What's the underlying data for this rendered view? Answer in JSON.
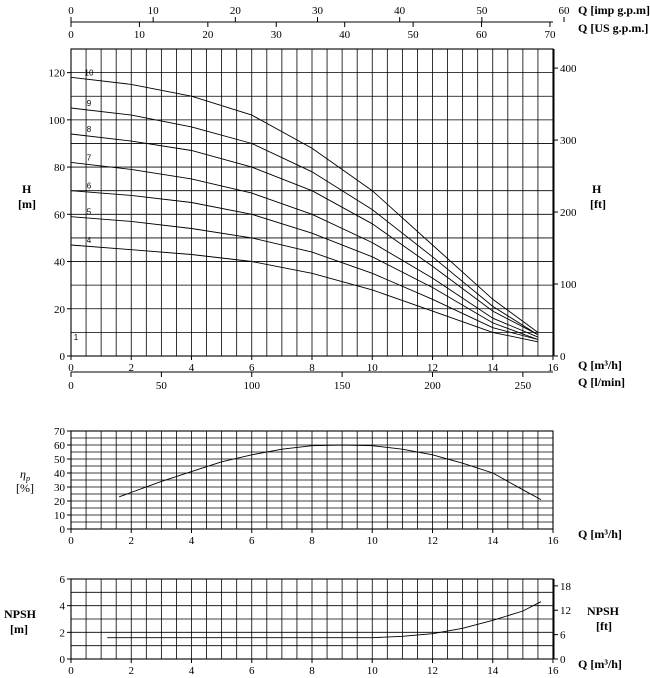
{
  "labels": {
    "q_imp": "Q [imp g.p.m]",
    "q_us": "Q [US g.p.m.]",
    "q_m3h": "Q [m³/h]",
    "q_lmin": "Q [l/min]",
    "h": "H",
    "h_m": "[m]",
    "h_ft": "[ft]",
    "eta_sym": "η",
    "eta_sub": "p",
    "eta_unit": "[%]",
    "npsh": "NPSH",
    "npsh_m": "[m]",
    "npsh_ft": "[ft]"
  },
  "chart_data": [
    {
      "type": "line",
      "x_label": "Q [m³/h]",
      "y_label": "H [m]",
      "xlim": [
        0,
        16
      ],
      "ylim": [
        0,
        130
      ],
      "x_ticks": [
        "0",
        "2",
        "4",
        "6",
        "8",
        "10",
        "12",
        "14",
        "16"
      ],
      "y_ticks": [
        "0",
        "20",
        "40",
        "60",
        "80",
        "100",
        "120"
      ],
      "y2_label": "H [ft]",
      "y2_ticks": [
        "0",
        "100",
        "200",
        "300",
        "400"
      ],
      "x_top_imp_ticks": [
        "0",
        "10",
        "20",
        "30",
        "40",
        "50",
        "60"
      ],
      "x_top_us_ticks": [
        "0",
        "10",
        "20",
        "30",
        "40",
        "50",
        "60",
        "70"
      ],
      "x_bottom_lmin_ticks": [
        "0",
        "50",
        "100",
        "150",
        "200",
        "250"
      ],
      "series": [
        {
          "name": "10",
          "x": [
            0,
            2,
            4,
            6,
            8,
            10,
            12,
            14,
            15.5
          ],
          "y": [
            118,
            115,
            110,
            102,
            88,
            70,
            47,
            24,
            10
          ]
        },
        {
          "name": "9",
          "x": [
            0,
            2,
            4,
            6,
            8,
            10,
            12,
            14,
            15.5
          ],
          "y": [
            105,
            102,
            97,
            90,
            78,
            62,
            42,
            21,
            9
          ]
        },
        {
          "name": "8",
          "x": [
            0,
            2,
            4,
            6,
            8,
            10,
            12,
            14,
            15.5
          ],
          "y": [
            94,
            91,
            87,
            80,
            70,
            56,
            38,
            19,
            9
          ]
        },
        {
          "name": "7",
          "x": [
            0,
            2,
            4,
            6,
            8,
            10,
            12,
            14,
            15.5
          ],
          "y": [
            82,
            79,
            75,
            69,
            60,
            48,
            33,
            16,
            8
          ]
        },
        {
          "name": "6",
          "x": [
            0,
            2,
            4,
            6,
            8,
            10,
            12,
            14,
            15.5
          ],
          "y": [
            70,
            68,
            65,
            60,
            52,
            42,
            29,
            14,
            7
          ]
        },
        {
          "name": "5",
          "x": [
            0,
            2,
            4,
            6,
            8,
            10,
            12,
            14,
            15.5
          ],
          "y": [
            59,
            57,
            54,
            50,
            44,
            35,
            24,
            12,
            7
          ]
        },
        {
          "name": "4",
          "x": [
            0,
            2,
            4,
            6,
            8,
            10,
            12,
            14,
            15.5
          ],
          "y": [
            47,
            45,
            43,
            40,
            35,
            28,
            19,
            10,
            6
          ]
        },
        {
          "name": "1",
          "x": [],
          "y": []
        }
      ]
    },
    {
      "type": "line",
      "x_label": "Q [m³/h]",
      "y_label": "η p [%]",
      "xlim": [
        0,
        16
      ],
      "ylim": [
        0,
        70
      ],
      "x_ticks": [
        "0",
        "2",
        "4",
        "6",
        "8",
        "10",
        "12",
        "14",
        "16"
      ],
      "y_ticks": [
        "0",
        "10",
        "20",
        "30",
        "40",
        "50",
        "60",
        "70"
      ],
      "series": [
        {
          "name": "",
          "x": [
            1.6,
            3,
            4,
            5,
            6,
            7,
            8,
            9,
            10,
            11,
            12,
            13,
            14,
            15,
            15.6
          ],
          "y": [
            23,
            34,
            41,
            48,
            53,
            57,
            59.5,
            60,
            59.5,
            57,
            53,
            47,
            40,
            28,
            21
          ]
        }
      ]
    },
    {
      "type": "line",
      "x_label": "Q [m³/h]",
      "y_label": "NPSH [m]",
      "xlim": [
        0,
        16
      ],
      "ylim": [
        0,
        6
      ],
      "x_ticks": [
        "0",
        "2",
        "4",
        "6",
        "8",
        "10",
        "12",
        "14",
        "16"
      ],
      "y_ticks": [
        "0",
        "2",
        "4",
        "6"
      ],
      "y2_label": "NPSH [ft]",
      "y2_ticks": [
        "0",
        "6",
        "12",
        "18"
      ],
      "series": [
        {
          "name": "",
          "x": [
            1.2,
            3,
            5,
            7,
            9,
            10,
            11,
            12,
            13,
            14,
            15,
            15.6
          ],
          "y": [
            1.6,
            1.6,
            1.6,
            1.6,
            1.6,
            1.6,
            1.7,
            1.9,
            2.3,
            2.9,
            3.6,
            4.3
          ]
        }
      ]
    }
  ]
}
